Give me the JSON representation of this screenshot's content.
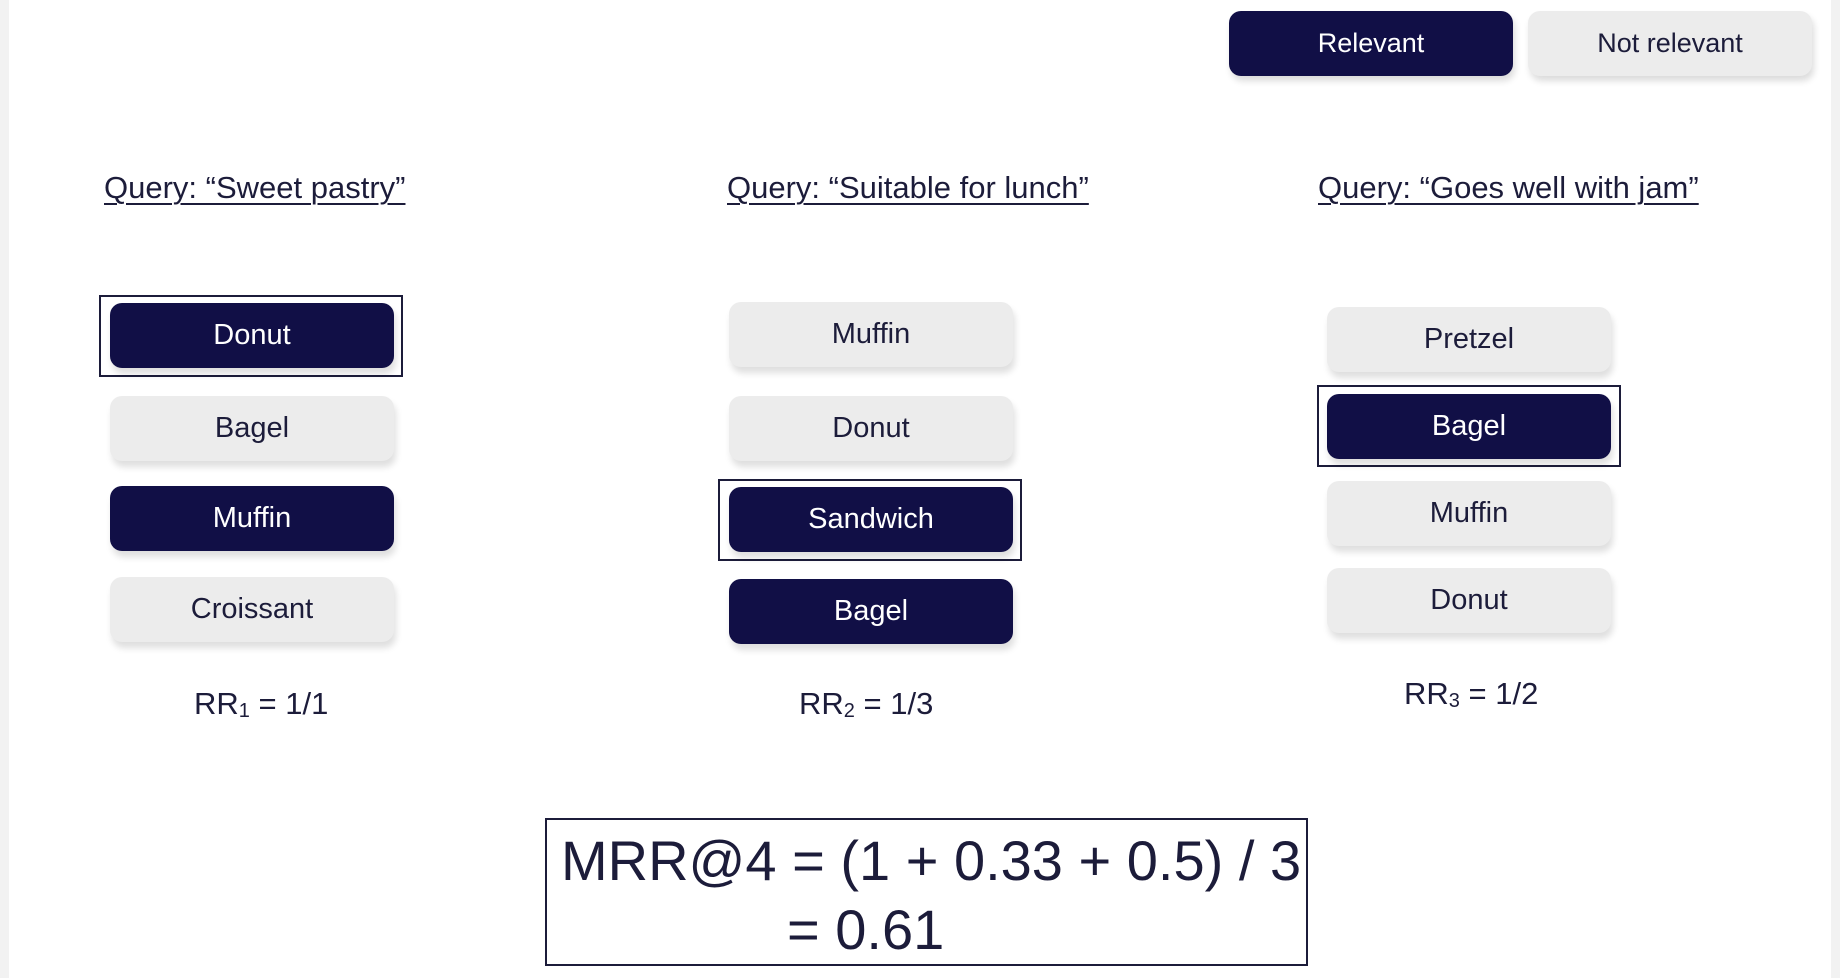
{
  "legend": {
    "relevant_label": "Relevant",
    "not_relevant_label": "Not relevant"
  },
  "queries": [
    {
      "title": "Query: “Sweet pastry”",
      "results": [
        {
          "label": "Donut",
          "relevant": true
        },
        {
          "label": "Bagel",
          "relevant": false
        },
        {
          "label": "Muffin",
          "relevant": true
        },
        {
          "label": "Croissant",
          "relevant": false
        }
      ],
      "first_relevant_rank": 1,
      "rr": {
        "prefix": "RR",
        "sub": "1",
        "value": "= 1/1"
      }
    },
    {
      "title": "Query: “Suitable for lunch”",
      "results": [
        {
          "label": "Muffin",
          "relevant": false
        },
        {
          "label": "Donut",
          "relevant": false
        },
        {
          "label": "Sandwich",
          "relevant": true
        },
        {
          "label": "Bagel",
          "relevant": true
        }
      ],
      "first_relevant_rank": 3,
      "rr": {
        "prefix": "RR",
        "sub": "2",
        "value": "= 1/3"
      }
    },
    {
      "title": "Query: “Goes well with jam”",
      "results": [
        {
          "label": "Pretzel",
          "relevant": false
        },
        {
          "label": "Bagel",
          "relevant": true
        },
        {
          "label": "Muffin",
          "relevant": false
        },
        {
          "label": "Donut",
          "relevant": false
        }
      ],
      "first_relevant_rank": 2,
      "rr": {
        "prefix": "RR",
        "sub": "3",
        "value": "= 1/2"
      }
    }
  ],
  "mrr": {
    "line1": "MRR@4 = (1 + 0.33 + 0.5) / 3",
    "line2": "= 0.61"
  },
  "colors": {
    "relevant_fill": "#110f46",
    "not_relevant_fill": "#ececec",
    "text_dark": "#1c1c3a"
  }
}
